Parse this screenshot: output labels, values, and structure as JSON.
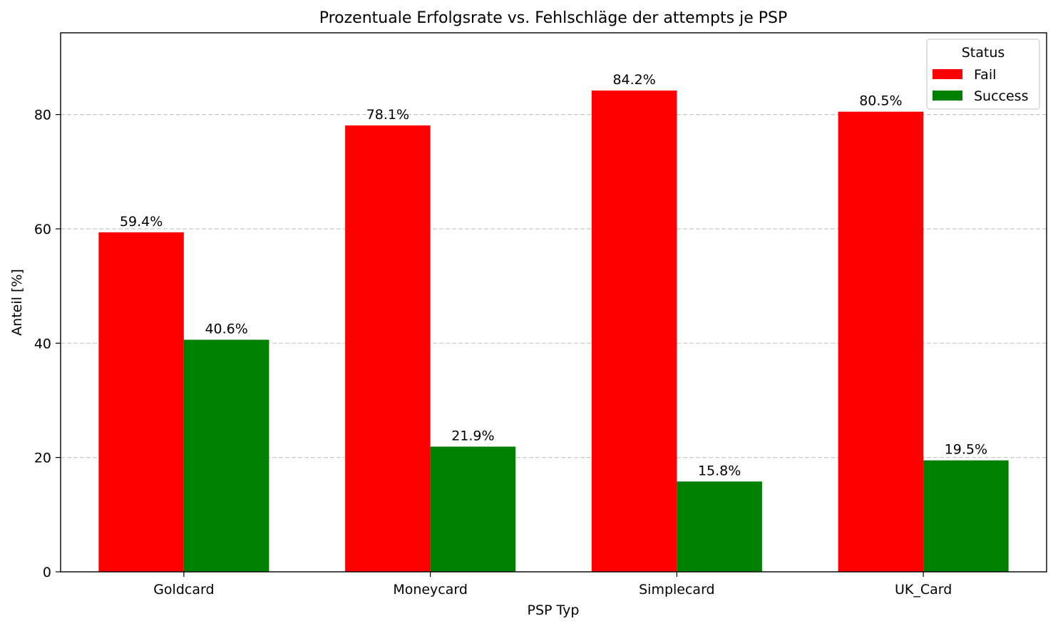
{
  "chart_data": {
    "type": "bar",
    "title": "Prozentuale Erfolgsrate vs. Fehlschläge der attempts je PSP",
    "xlabel": "PSP Typ",
    "ylabel": "Anteil [%]",
    "categories": [
      "Goldcard",
      "Moneycard",
      "Simplecard",
      "UK_Card"
    ],
    "series": [
      {
        "name": "Fail",
        "color": "#ff0000",
        "values": [
          59.4,
          78.1,
          84.2,
          80.5
        ],
        "labels": [
          "59.4%",
          "78.1%",
          "84.2%",
          "80.5%"
        ]
      },
      {
        "name": "Success",
        "color": "#008000",
        "values": [
          40.6,
          21.9,
          15.8,
          19.5
        ],
        "labels": [
          "40.6%",
          "21.9%",
          "15.8%",
          "19.5%"
        ]
      }
    ],
    "ylim": [
      0,
      94.3
    ],
    "yticks": [
      "0",
      "20",
      "40",
      "60",
      "80"
    ],
    "ytick_values": [
      0,
      20,
      40,
      60,
      80
    ],
    "grid": "y-dashed",
    "legend": {
      "title": "Status",
      "placement": "top-right"
    }
  }
}
